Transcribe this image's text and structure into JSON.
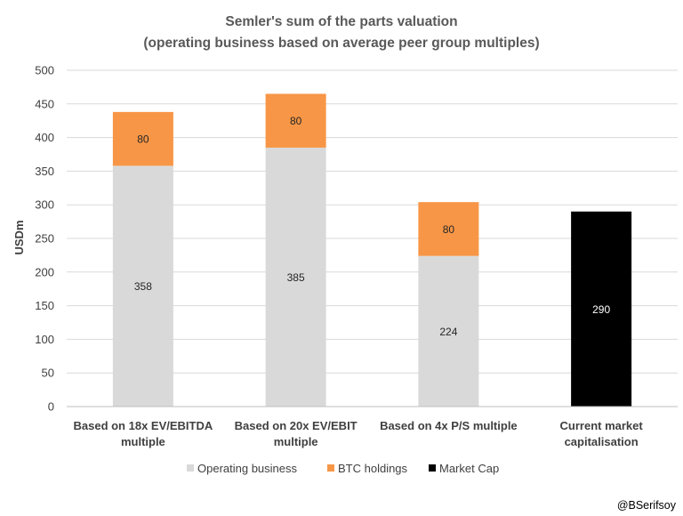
{
  "chart_data": {
    "type": "bar",
    "stacked": true,
    "title": [
      "Semler's sum of the parts valuation",
      "(operating business based on average peer group multiples)"
    ],
    "ylabel": "USDm",
    "xlabel": "",
    "ylim": [
      0,
      500
    ],
    "yticks": [
      0,
      50,
      100,
      150,
      200,
      250,
      300,
      350,
      400,
      450,
      500
    ],
    "grid": true,
    "legend_position": "bottom",
    "categories": [
      [
        "Based on 18x EV/EBITDA",
        "multiple"
      ],
      [
        "Based on 20x EV/EBIT",
        "multiple"
      ],
      [
        "Based on 4x P/S multiple"
      ],
      [
        "Current market",
        "capitalisation"
      ]
    ],
    "series": [
      {
        "name": "Operating business",
        "color": "#d9d9d9",
        "label_color": "#262626",
        "values": [
          358,
          385,
          224,
          null
        ]
      },
      {
        "name": "BTC holdings",
        "color": "#f79646",
        "label_color": "#262626",
        "values": [
          80,
          80,
          80,
          null
        ]
      },
      {
        "name": "Market Cap",
        "color": "#000000",
        "label_color": "#ffffff",
        "values": [
          null,
          null,
          null,
          290
        ]
      }
    ]
  },
  "credit": "@BSerifsoy"
}
